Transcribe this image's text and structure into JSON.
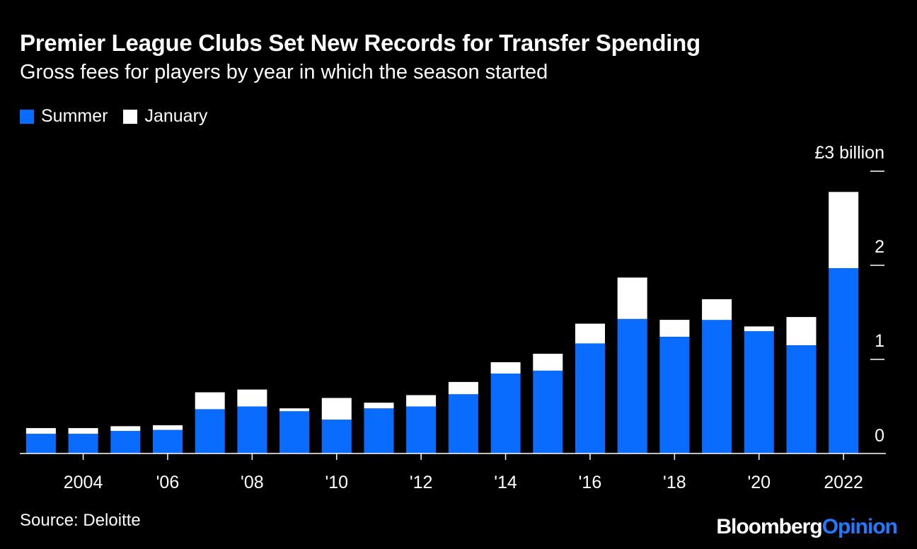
{
  "header": {
    "title": "Premier League Clubs Set New Records for Transfer Spending",
    "subtitle": "Gross fees for players by year in which the season started"
  },
  "legend": [
    {
      "label": "Summer",
      "color": "#0a6cff"
    },
    {
      "label": "January",
      "color": "#ffffff"
    }
  ],
  "footer": {
    "source": "Source: Deloitte",
    "brand_primary": "Bloomberg",
    "brand_secondary": "Opinion"
  },
  "chart_data": {
    "type": "bar",
    "stacked": true,
    "title": "Premier League Clubs Set New Records for Transfer Spending",
    "subtitle": "Gross fees for players by year in which the season started",
    "categories": [
      2003,
      2004,
      2005,
      2006,
      2007,
      2008,
      2009,
      2010,
      2011,
      2012,
      2013,
      2014,
      2015,
      2016,
      2017,
      2018,
      2019,
      2020,
      2021,
      2022
    ],
    "series": [
      {
        "name": "Summer",
        "color": "#0a6cff",
        "values": [
          0.21,
          0.21,
          0.24,
          0.25,
          0.47,
          0.5,
          0.45,
          0.36,
          0.48,
          0.5,
          0.63,
          0.85,
          0.88,
          1.17,
          1.43,
          1.24,
          1.42,
          1.3,
          1.15,
          1.97
        ]
      },
      {
        "name": "January",
        "color": "#ffffff",
        "values": [
          0.06,
          0.06,
          0.05,
          0.05,
          0.18,
          0.18,
          0.03,
          0.23,
          0.06,
          0.12,
          0.13,
          0.12,
          0.18,
          0.21,
          0.44,
          0.18,
          0.22,
          0.05,
          0.3,
          0.81
        ]
      }
    ],
    "ylim": [
      0,
      3
    ],
    "yticks": [
      {
        "value": 0,
        "label": "0"
      },
      {
        "value": 1,
        "label": "1"
      },
      {
        "value": 2,
        "label": "2"
      },
      {
        "value": 3,
        "label": "£3 billion"
      }
    ],
    "xticks": [
      {
        "value": 2004,
        "label": "2004"
      },
      {
        "value": 2006,
        "label": "'06"
      },
      {
        "value": 2008,
        "label": "'08"
      },
      {
        "value": 2010,
        "label": "'10"
      },
      {
        "value": 2012,
        "label": "'12"
      },
      {
        "value": 2014,
        "label": "'14"
      },
      {
        "value": 2016,
        "label": "'16"
      },
      {
        "value": 2018,
        "label": "'18"
      },
      {
        "value": 2020,
        "label": "'20"
      },
      {
        "value": 2022,
        "label": "2022"
      }
    ],
    "grid": false,
    "legend_position": "top-left"
  }
}
